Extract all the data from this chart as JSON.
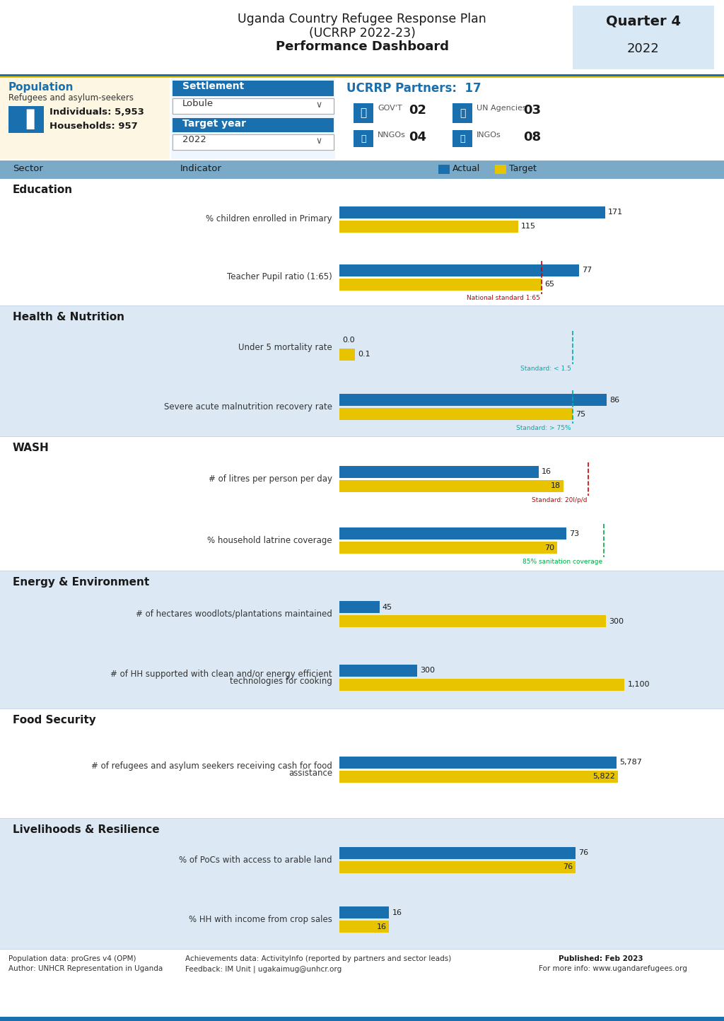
{
  "title_line1": "Uganda Country Refugee Response Plan",
  "title_line2": "(UCRRP 2022-23)",
  "title_line3": "Performance Dashboard",
  "quarter_label": "Quarter 4",
  "year_label": "2022",
  "population_label": "Population",
  "pop_sub": "Refugees and asylum-seekers",
  "individuals": "Individuals: 5,953",
  "households": "Households: 957",
  "settlement_label": "Settlement",
  "settlement_name": "Lobule",
  "target_year_label": "Target year",
  "target_year": "2022",
  "partners_label": "UCRRP Partners:  17",
  "gov_label": "GOV'T",
  "gov_count": "02",
  "un_label": "UN Agencies",
  "un_count": "03",
  "nngo_label": "NNGOs",
  "nngo_count": "04",
  "ingo_label": "INGOs",
  "ingo_count": "08",
  "sectors": [
    {
      "name": "Education",
      "bg_color": "#ffffff",
      "indicators": [
        {
          "label": "% children enrolled in Primary",
          "actual": 171,
          "target": 115,
          "max_display": 200,
          "standard_line": null,
          "standard_label": null,
          "standard_color": null,
          "actual_label": "171",
          "target_label": "115",
          "target_inside": false
        },
        {
          "label": "Teacher Pupil ratio (1:65)",
          "actual": 77,
          "target": 65,
          "max_display": 100,
          "standard_line": 65,
          "standard_label": "National standard 1:65",
          "standard_color": "#cc0000",
          "actual_label": "77",
          "target_label": "65",
          "target_inside": false
        }
      ]
    },
    {
      "name": "Health & Nutrition",
      "bg_color": "#dce9f5",
      "indicators": [
        {
          "label": "Under 5 mortality rate",
          "actual": 0.0,
          "target": 0.1,
          "max_display": 2.0,
          "standard_line": 1.5,
          "standard_label": "Standard: < 1.5",
          "standard_color": "#00aaaa",
          "actual_label": "0.0",
          "target_label": "0.1",
          "target_inside": false
        },
        {
          "label": "Severe acute malnutrition recovery rate",
          "actual": 86,
          "target": 75,
          "max_display": 100,
          "standard_line": 75,
          "standard_label": "Standard: > 75%",
          "standard_color": "#00aaaa",
          "actual_label": "86",
          "target_label": "75",
          "target_inside": false
        }
      ]
    },
    {
      "name": "WASH",
      "bg_color": "#ffffff",
      "indicators": [
        {
          "label": "# of litres per person per day",
          "actual": 16,
          "target": 18,
          "max_display": 25,
          "standard_line": 20,
          "standard_label": "Standard: 20l/p/d",
          "standard_color": "#cc0000",
          "actual_label": "16",
          "target_label": "18",
          "target_inside": true
        },
        {
          "label": "% household latrine coverage",
          "actual": 73,
          "target": 70,
          "max_display": 100,
          "standard_line": 85,
          "standard_label": "85% sanitation coverage",
          "standard_color": "#00aa44",
          "actual_label": "73",
          "target_label": "70",
          "target_inside": true
        }
      ]
    },
    {
      "name": "Energy & Environment",
      "bg_color": "#dce9f5",
      "indicators": [
        {
          "label": "# of hectares woodlots/plantations maintained",
          "actual": 45,
          "target": 300,
          "max_display": 350,
          "standard_line": null,
          "standard_label": null,
          "standard_color": null,
          "actual_label": "45",
          "target_label": "300",
          "target_inside": false
        },
        {
          "label": "# of HH supported with clean and/or energy efficient\ntechnologies for cooking",
          "actual": 300,
          "target": 1100,
          "max_display": 1200,
          "standard_line": null,
          "standard_label": null,
          "standard_color": null,
          "actual_label": "300",
          "target_label": "1,100",
          "target_inside": false
        }
      ]
    },
    {
      "name": "Food Security",
      "bg_color": "#ffffff",
      "indicators": [
        {
          "label": "# of refugees and asylum seekers receiving cash for food\nassistance",
          "actual": 5787,
          "target": 5822,
          "max_display": 6500,
          "standard_line": null,
          "standard_label": null,
          "standard_color": null,
          "actual_label": "5,787",
          "target_label": "5,822",
          "target_inside": true
        }
      ]
    },
    {
      "name": "Livelihoods & Resilience",
      "bg_color": "#dce9f5",
      "indicators": [
        {
          "label": "% of PoCs with access to arable land",
          "actual": 76,
          "target": 76,
          "max_display": 100,
          "standard_line": null,
          "standard_label": null,
          "standard_color": null,
          "actual_label": "76",
          "target_label": "76",
          "target_inside": true
        },
        {
          "label": "% HH with income from crop sales",
          "actual": 16,
          "target": 16,
          "max_display": 100,
          "standard_line": null,
          "standard_label": null,
          "standard_color": null,
          "actual_label": "16",
          "target_label": "16",
          "target_inside": true
        }
      ]
    }
  ],
  "actual_color": "#1a6faf",
  "target_color": "#e8c400",
  "header_bg": "#4a90d9",
  "col_header_bg": "#7aaac8",
  "pop_bg": "#fdf6e3",
  "settle_bg": "#eaf4ff",
  "footer_text1": "Population data: proGres v4 (OPM)",
  "footer_text2": "Author: UNHCR Representation in Uganda",
  "footer_text3": "Achievements data: ActivityInfo (reported by partners and sector leads)",
  "footer_text4": "Feedback: IM Unit | ugakaimug@unhcr.org",
  "footer_text5": "Published: Feb 2023",
  "footer_text6": "For more info: www.ugandarefugees.org"
}
